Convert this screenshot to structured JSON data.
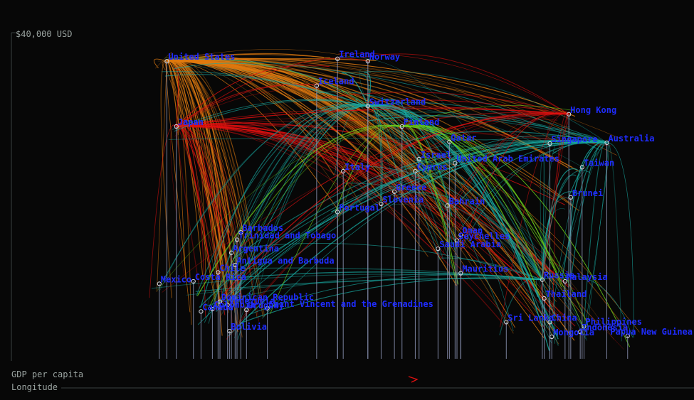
{
  "chart_data": {
    "type": "scatter",
    "ylabel": "GDP per capita",
    "xlabel": "Longitude",
    "y_max_label": "$40,000 USD",
    "ylim": [
      0,
      40000
    ],
    "xlim": [
      -180,
      180
    ],
    "grid": false,
    "colors": {
      "background": "#070707",
      "label": "#1f2cff",
      "stem": "#8f97b8",
      "trail_americas": "#e07a10",
      "trail_japan": "#e01010",
      "trail_europe": "#18a8a0",
      "trail_green": "#6acd1a"
    },
    "points": [
      {
        "name": "United States",
        "x": -98,
        "y": 36500
      },
      {
        "name": "Japan",
        "x": -93,
        "y": 28500
      },
      {
        "name": "Mexico",
        "x": -102,
        "y": 9200
      },
      {
        "name": "Costa Rica",
        "x": -84,
        "y": 9500
      },
      {
        "name": "Barbados",
        "x": -59,
        "y": 15500
      },
      {
        "name": "Trinidad and Tobago",
        "x": -61,
        "y": 14600
      },
      {
        "name": "Argentina",
        "x": -64,
        "y": 13000
      },
      {
        "name": "Chile",
        "x": -71,
        "y": 10600
      },
      {
        "name": "Antigua and Barbuda",
        "x": -62,
        "y": 11500
      },
      {
        "name": "Dominican Republic",
        "x": -70,
        "y": 7000
      },
      {
        "name": "Saint Vincent and the Grenadines",
        "x": -45,
        "y": 6200
      },
      {
        "name": "Venezuela",
        "x": -66,
        "y": 6600
      },
      {
        "name": "Colombia",
        "x": -74,
        "y": 6100
      },
      {
        "name": "Uruguay",
        "x": -56,
        "y": 6000
      },
      {
        "name": "Bolivia",
        "x": -65,
        "y": 3400
      },
      {
        "name": "Canada",
        "x": -80,
        "y": 5800
      },
      {
        "name": "Ireland",
        "x": -8,
        "y": 36800
      },
      {
        "name": "Iceland",
        "x": -19,
        "y": 33500
      },
      {
        "name": "Norway",
        "x": 8,
        "y": 36500
      },
      {
        "name": "Switzerland",
        "x": 8,
        "y": 31000
      },
      {
        "name": "Finland",
        "x": 26,
        "y": 28500
      },
      {
        "name": "Italy",
        "x": -5,
        "y": 23000
      },
      {
        "name": "Israel",
        "x": 35,
        "y": 24500
      },
      {
        "name": "Cyprus",
        "x": 33,
        "y": 23000
      },
      {
        "name": "Greece",
        "x": 22,
        "y": 20500
      },
      {
        "name": "Portugal",
        "x": -8,
        "y": 18000
      },
      {
        "name": "Slovenia",
        "x": 15,
        "y": 19000
      },
      {
        "name": "Bahrain",
        "x": 50,
        "y": 18800
      },
      {
        "name": "Qatar",
        "x": 51,
        "y": 26600
      },
      {
        "name": "United Arab Emirates",
        "x": 54,
        "y": 24000
      },
      {
        "name": "Seychelles",
        "x": 55,
        "y": 14500
      },
      {
        "name": "Saudi Arabia",
        "x": 45,
        "y": 13500
      },
      {
        "name": "Oman",
        "x": 57,
        "y": 15200
      },
      {
        "name": "Mauritius",
        "x": 57,
        "y": 10500
      },
      {
        "name": "Russia",
        "x": 100,
        "y": 9700
      },
      {
        "name": "Malaysia",
        "x": 112,
        "y": 9500
      },
      {
        "name": "Thailand",
        "x": 101,
        "y": 7400
      },
      {
        "name": "China",
        "x": 104,
        "y": 4500
      },
      {
        "name": "Sri Lanka",
        "x": 81,
        "y": 4500
      },
      {
        "name": "Philippines",
        "x": 122,
        "y": 4000
      },
      {
        "name": "Indonesia",
        "x": 120,
        "y": 3300
      },
      {
        "name": "Mongolia",
        "x": 105,
        "y": 2700
      },
      {
        "name": "Singapore",
        "x": 104,
        "y": 26400
      },
      {
        "name": "Hong Kong",
        "x": 114,
        "y": 30000
      },
      {
        "name": "Australia",
        "x": 134,
        "y": 26500
      },
      {
        "name": "Taiwan",
        "x": 121,
        "y": 23500
      },
      {
        "name": "Brunei",
        "x": 115,
        "y": 19800
      },
      {
        "name": "Papua New Guinea",
        "x": 145,
        "y": 2800
      }
    ],
    "annotations": [
      "$40,000 USD"
    ]
  }
}
